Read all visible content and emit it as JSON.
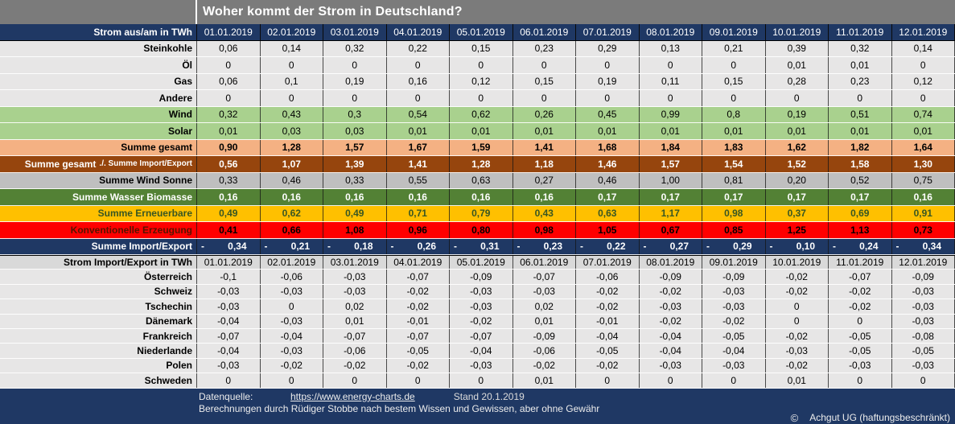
{
  "title": "Woher kommt der Strom in Deutschland?",
  "colors": {
    "title_bar": "#7b7b7b",
    "navy": "#1f3864",
    "cell_bg": "#e7e6e6",
    "green": "#a9d18e",
    "orange": "#f4b183",
    "brown": "#96450d",
    "gray_mid": "#bfbfbf",
    "dark_green": "#538135",
    "gold": "#ffc000",
    "gold_text": "#375623",
    "red": "#ff0000",
    "red_label_text": "#551400",
    "header2_bg": "#d9d9d9"
  },
  "dates": [
    "01.01.2019",
    "02.01.2019",
    "03.01.2019",
    "04.01.2019",
    "05.01.2019",
    "06.01.2019",
    "07.01.2019",
    "08.01.2019",
    "09.01.2019",
    "10.01.2019",
    "11.01.2019",
    "12.01.2019"
  ],
  "generation": {
    "header_label": "Strom aus/am in TWh",
    "rows": [
      {
        "label": "Steinkohle",
        "style": "plain",
        "values": [
          "0,06",
          "0,14",
          "0,32",
          "0,22",
          "0,15",
          "0,23",
          "0,29",
          "0,13",
          "0,21",
          "0,39",
          "0,32",
          "0,14"
        ]
      },
      {
        "label": "Öl",
        "style": "plain",
        "values": [
          "0",
          "0",
          "0",
          "0",
          "0",
          "0",
          "0",
          "0",
          "0",
          "0,01",
          "0,01",
          "0"
        ]
      },
      {
        "label": "Gas",
        "style": "plain",
        "values": [
          "0,06",
          "0,1",
          "0,19",
          "0,16",
          "0,12",
          "0,15",
          "0,19",
          "0,11",
          "0,15",
          "0,28",
          "0,23",
          "0,12"
        ]
      },
      {
        "label": "Andere",
        "style": "plain",
        "values": [
          "0",
          "0",
          "0",
          "0",
          "0",
          "0",
          "0",
          "0",
          "0",
          "0",
          "0",
          "0"
        ]
      },
      {
        "label": "Wind",
        "style": "green",
        "values": [
          "0,32",
          "0,43",
          "0,3",
          "0,54",
          "0,62",
          "0,26",
          "0,45",
          "0,99",
          "0,8",
          "0,19",
          "0,51",
          "0,74"
        ]
      },
      {
        "label": "Solar",
        "style": "green",
        "values": [
          "0,01",
          "0,03",
          "0,03",
          "0,01",
          "0,01",
          "0,01",
          "0,01",
          "0,01",
          "0,01",
          "0,01",
          "0,01",
          "0,01"
        ]
      },
      {
        "label": "Summe gesamt",
        "style": "orange-total",
        "values": [
          "0,90",
          "1,28",
          "1,57",
          "1,67",
          "1,59",
          "1,41",
          "1,68",
          "1,84",
          "1,83",
          "1,62",
          "1,82",
          "1,64"
        ]
      },
      {
        "label": "Summe gesamt",
        "label_suffix": "./. Summe Import/Export",
        "style": "brown",
        "values": [
          "0,56",
          "1,07",
          "1,39",
          "1,41",
          "1,28",
          "1,18",
          "1,46",
          "1,57",
          "1,54",
          "1,52",
          "1,58",
          "1,30"
        ]
      },
      {
        "label": "Summe Wind Sonne",
        "style": "graymid",
        "values": [
          "0,33",
          "0,46",
          "0,33",
          "0,55",
          "0,63",
          "0,27",
          "0,46",
          "1,00",
          "0,81",
          "0,20",
          "0,52",
          "0,75"
        ]
      },
      {
        "label": "Summe Wasser Biomasse",
        "style": "darkgreen",
        "values": [
          "0,16",
          "0,16",
          "0,16",
          "0,16",
          "0,16",
          "0,16",
          "0,17",
          "0,17",
          "0,17",
          "0,17",
          "0,17",
          "0,16"
        ]
      },
      {
        "label": "Summe Erneuerbare",
        "style": "gold",
        "values": [
          "0,49",
          "0,62",
          "0,49",
          "0,71",
          "0,79",
          "0,43",
          "0,63",
          "1,17",
          "0,98",
          "0,37",
          "0,69",
          "0,91"
        ]
      },
      {
        "label": "Konventionelle Erzeugung",
        "style": "red",
        "values": [
          "0,41",
          "0,66",
          "1,08",
          "0,96",
          "0,80",
          "0,98",
          "1,05",
          "0,67",
          "0,85",
          "1,25",
          "1,13",
          "0,73"
        ]
      },
      {
        "label": "Summe Import/Export",
        "style": "navy-row",
        "accounting": true,
        "values": [
          "- 0,34",
          "- 0,21",
          "- 0,18",
          "- 0,26",
          "- 0,31",
          "- 0,23",
          "- 0,22",
          "- 0,27",
          "- 0,29",
          "- 0,10",
          "- 0,24",
          "- 0,34"
        ]
      }
    ]
  },
  "import_export": {
    "header_label": "Strom Import/Export in TWh",
    "rows": [
      {
        "label": "Österreich",
        "style": "country",
        "values": [
          "-0,1",
          "-0,06",
          "-0,03",
          "-0,07",
          "-0,09",
          "-0,07",
          "-0,06",
          "-0,09",
          "-0,09",
          "-0,02",
          "-0,07",
          "-0,09"
        ]
      },
      {
        "label": "Schweiz",
        "style": "country",
        "values": [
          "-0,03",
          "-0,03",
          "-0,03",
          "-0,02",
          "-0,03",
          "-0,03",
          "-0,02",
          "-0,02",
          "-0,03",
          "-0,02",
          "-0,02",
          "-0,03"
        ]
      },
      {
        "label": "Tschechin",
        "style": "country",
        "values": [
          "-0,03",
          "0",
          "0,02",
          "-0,02",
          "-0,03",
          "0,02",
          "-0,02",
          "-0,03",
          "-0,03",
          "0",
          "-0,02",
          "-0,03"
        ]
      },
      {
        "label": "Dänemark",
        "style": "country",
        "values": [
          "-0,04",
          "-0,03",
          "0,01",
          "-0,01",
          "-0,02",
          "0,01",
          "-0,01",
          "-0,02",
          "-0,02",
          "0",
          "0",
          "-0,03"
        ]
      },
      {
        "label": "Frankreich",
        "style": "country",
        "values": [
          "-0,07",
          "-0,04",
          "-0,07",
          "-0,07",
          "-0,07",
          "-0,09",
          "-0,04",
          "-0,04",
          "-0,05",
          "-0,02",
          "-0,05",
          "-0,08"
        ]
      },
      {
        "label": "Niederlande",
        "style": "country",
        "values": [
          "-0,04",
          "-0,03",
          "-0,06",
          "-0,05",
          "-0,04",
          "-0,06",
          "-0,05",
          "-0,04",
          "-0,04",
          "-0,03",
          "-0,05",
          "-0,05"
        ]
      },
      {
        "label": "Polen",
        "style": "country",
        "values": [
          "-0,03",
          "-0,02",
          "-0,02",
          "-0,02",
          "-0,03",
          "-0,02",
          "-0,02",
          "-0,03",
          "-0,03",
          "-0,02",
          "-0,03",
          "-0,03"
        ]
      },
      {
        "label": "Schweden",
        "style": "country",
        "values": [
          "0",
          "0",
          "0",
          "0",
          "0",
          "0,01",
          "0",
          "0",
          "0",
          "0,01",
          "0",
          "0"
        ]
      }
    ]
  },
  "footer": {
    "source_label": "Datenquelle:",
    "source_link": "https://www.energy-charts.de",
    "stand": "Stand 20.1.2019",
    "disclaimer": "Berechnungen durch Rüdiger Stobbe nach bestem Wissen und Gewissen, aber ohne Gewähr",
    "copyright_symbol": "©",
    "copyright_text": "Achgut UG (haftungsbeschränkt)"
  }
}
